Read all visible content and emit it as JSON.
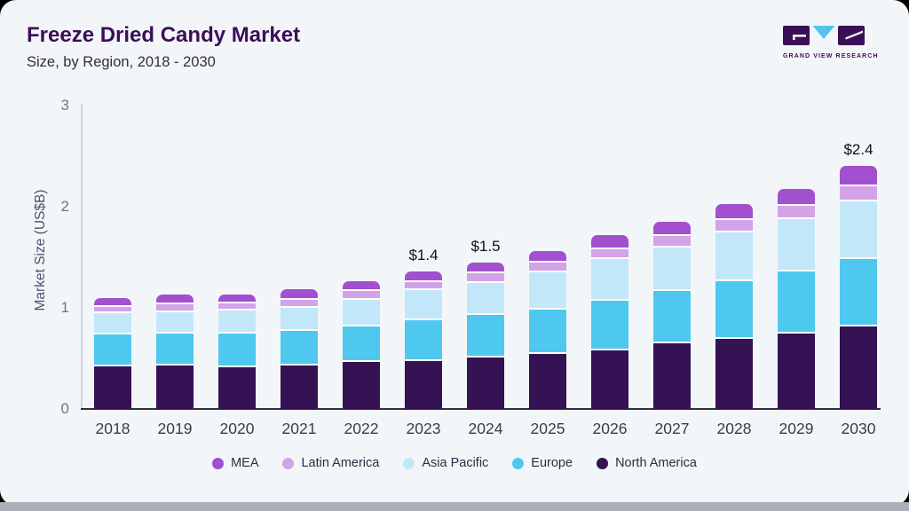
{
  "header": {
    "title": "Freeze Dried Candy Market",
    "subtitle": "Size, by Region, 2018 - 2030"
  },
  "logo": {
    "brand": "GRAND VIEW RESEARCH",
    "block_color": "#3b0f56",
    "triangle_color": "#56c3ea"
  },
  "chart_data": {
    "type": "bar",
    "stacked": true,
    "title": "Freeze Dried Candy Market Size, by Region, 2018 - 2030",
    "ylabel": "Market Size (US$B)",
    "ylim": [
      0,
      3
    ],
    "yticks": [
      0,
      1,
      2,
      3
    ],
    "grid": false,
    "legend_position": "bottom",
    "categories": [
      "2018",
      "2019",
      "2020",
      "2021",
      "2022",
      "2023",
      "2024",
      "2025",
      "2026",
      "2027",
      "2028",
      "2029",
      "2030"
    ],
    "series": [
      {
        "name": "North America",
        "color": "#341253",
        "values": [
          0.44,
          0.45,
          0.43,
          0.45,
          0.48,
          0.49,
          0.53,
          0.56,
          0.6,
          0.67,
          0.71,
          0.76,
          0.83
        ]
      },
      {
        "name": "Europe",
        "color": "#4fc8f0",
        "values": [
          0.32,
          0.32,
          0.33,
          0.34,
          0.35,
          0.4,
          0.42,
          0.44,
          0.49,
          0.52,
          0.57,
          0.61,
          0.67
        ]
      },
      {
        "name": "Asia Pacific",
        "color": "#c2e7f9",
        "values": [
          0.21,
          0.21,
          0.23,
          0.23,
          0.26,
          0.3,
          0.32,
          0.37,
          0.41,
          0.43,
          0.48,
          0.52,
          0.57
        ]
      },
      {
        "name": "Latin America",
        "color": "#d3a3e8",
        "values": [
          0.06,
          0.08,
          0.07,
          0.08,
          0.09,
          0.08,
          0.1,
          0.1,
          0.1,
          0.11,
          0.12,
          0.13,
          0.15
        ]
      },
      {
        "name": "MEA",
        "color": "#a24fd0",
        "values": [
          0.07,
          0.08,
          0.07,
          0.09,
          0.08,
          0.09,
          0.09,
          0.1,
          0.12,
          0.12,
          0.14,
          0.15,
          0.18
        ]
      }
    ],
    "legend_order": [
      "MEA",
      "Latin America",
      "Asia Pacific",
      "Europe",
      "North America"
    ],
    "annotations": [
      {
        "category": "2023",
        "text": "$1.4"
      },
      {
        "category": "2024",
        "text": "$1.5"
      },
      {
        "category": "2030",
        "text": "$2.4"
      }
    ]
  }
}
